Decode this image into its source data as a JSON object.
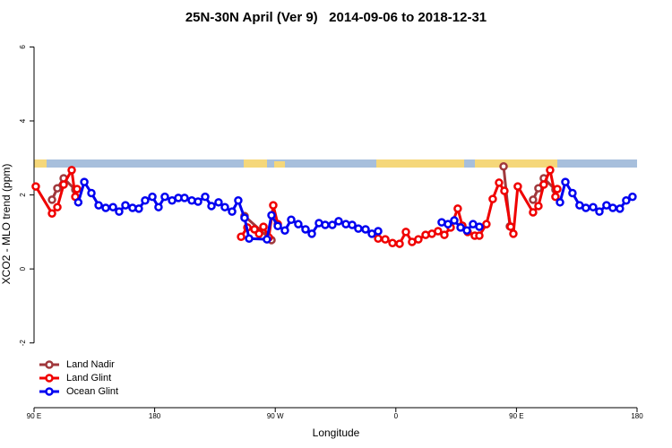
{
  "chart_data": {
    "type": "line",
    "title": "25N-30N April (Ver 9)   2014-09-06 to 2018-12-31",
    "x_label": "Longitude",
    "y_label": "XCO2 - MLO trend (ppm)",
    "xlim": [
      90,
      540
    ],
    "ylim": [
      -3.75,
      6.3
    ],
    "xticks": [
      {
        "value": 90,
        "label": "90 E"
      },
      180,
      {
        "value": 270,
        "label": "90 W"
      },
      {
        "value": 360,
        "label": "0"
      },
      {
        "value": 450,
        "label": "90 E"
      },
      {
        "value": 540,
        "label": "180"
      }
    ],
    "yticks": [
      -2,
      0,
      2,
      4,
      6
    ],
    "legend": "bottom-left",
    "series": [
      {
        "name": "Land Nadir",
        "color": "#a0383c",
        "x": [
          103.4,
          107.4,
          112.1,
          120.8,
          190,
          247.1,
          267.2,
          400,
          440.4,
          445.1,
          455,
          462.4,
          466.4,
          470.4,
          479.1
        ],
        "values": [
          1.87,
          2.18,
          2.45,
          2.14,
          null,
          1.43,
          0.78,
          null,
          2.77,
          1.15,
          null,
          1.87,
          2.18,
          2.45,
          2.14
        ]
      },
      {
        "name": "Land Glint",
        "color": "#f00000",
        "x": [
          91.3,
          103.4,
          107.4,
          112.1,
          118.1,
          120.8,
          122.1,
          190,
          244.5,
          249.2,
          254.5,
          257.9,
          261.2,
          265.2,
          268.5,
          271.9,
          345,
          346.8,
          352.1,
          357.5,
          362.8,
          367.5,
          372.1,
          376.8,
          382.2,
          386.9,
          391.5,
          396.2,
          400.9,
          406.2,
          409.6,
          413.6,
          418.9,
          422.3,
          427.6,
          432.3,
          437,
          441,
          445.7,
          447.7,
          451,
          462.4,
          466.4,
          470.4,
          475.1,
          479.1,
          480.5
        ],
        "values": [
          2.23,
          1.5,
          1.67,
          2.28,
          2.67,
          1.95,
          2.16,
          null,
          0.87,
          1.12,
          1.07,
          0.95,
          1.14,
          0.85,
          1.72,
          1.21,
          null,
          0.82,
          0.8,
          0.7,
          0.68,
          1.0,
          0.73,
          0.8,
          0.92,
          0.95,
          1.02,
          0.92,
          1.12,
          1.63,
          1.17,
          1.0,
          0.9,
          0.9,
          1.21,
          1.89,
          2.33,
          2.11,
          1.14,
          0.95,
          2.23,
          1.53,
          1.7,
          2.28,
          2.67,
          1.95,
          2.16
        ]
      },
      {
        "name": "Ocean Glint",
        "color": "#0000f0",
        "x": [
          123,
          127.5,
          132.8,
          138.2,
          143.5,
          148.9,
          153.5,
          158.2,
          163.5,
          168.2,
          172.9,
          178.3,
          182.9,
          187.6,
          193,
          197.7,
          202.3,
          207.7,
          212.4,
          217.7,
          222.4,
          227.7,
          232.4,
          237.8,
          242.4,
          247.1,
          250.5,
          263.8,
          267.2,
          271.9,
          277.2,
          281.9,
          287.2,
          292.6,
          297.3,
          302.6,
          307.3,
          312.6,
          317.3,
          322.7,
          327.4,
          332,
          337.4,
          342.1,
          346.8,
          370,
          394.2,
          398.9,
          403.6,
          408.3,
          413,
          417.6,
          422.3,
          450,
          482.5,
          486.5,
          491.8,
          497.1,
          501.8,
          507.2,
          511.9,
          517.2,
          521.9,
          527.2,
          531.9,
          536.6
        ],
        "values": [
          1.8,
          2.35,
          2.05,
          1.72,
          1.65,
          1.67,
          1.55,
          1.72,
          1.65,
          1.63,
          1.85,
          1.95,
          1.67,
          1.95,
          1.85,
          1.92,
          1.92,
          1.85,
          1.82,
          1.95,
          1.7,
          1.8,
          1.67,
          1.55,
          1.85,
          1.38,
          0.82,
          0.8,
          1.45,
          1.16,
          1.04,
          1.33,
          1.21,
          1.07,
          0.95,
          1.24,
          1.19,
          1.19,
          1.29,
          1.21,
          1.19,
          1.09,
          1.07,
          0.95,
          1.02,
          null,
          1.26,
          1.21,
          1.31,
          1.12,
          1.04,
          1.21,
          1.14,
          null,
          1.8,
          2.35,
          2.05,
          1.72,
          1.65,
          1.67,
          1.55,
          1.72,
          1.65,
          1.63,
          1.85,
          1.95
        ]
      }
    ]
  }
}
